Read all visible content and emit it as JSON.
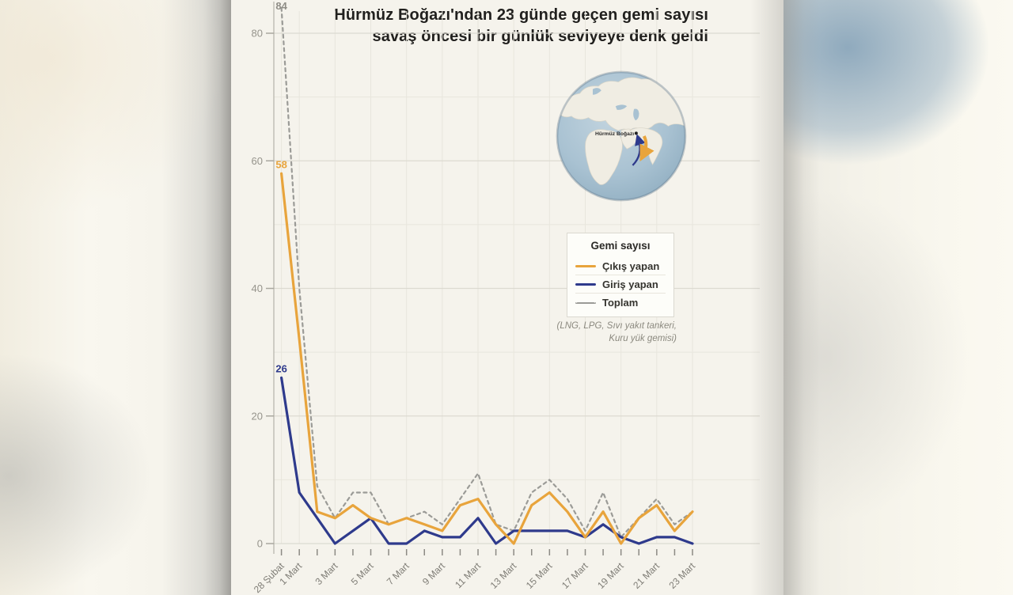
{
  "title": {
    "line1": "Hürmüz Boğazı'ndan 23 günde geçen gemi sayısı",
    "line2": "savaş öncesi bir günlük seviyeye denk geldi"
  },
  "chart_data": {
    "type": "line",
    "categories": [
      "28 Şubat",
      "1 Mart",
      "2 Mart",
      "3 Mart",
      "4 Mart",
      "5 Mart",
      "6 Mart",
      "7 Mart",
      "8 Mart",
      "9 Mart",
      "10 Mart",
      "11 Mart",
      "12 Mart",
      "13 Mart",
      "14 Mart",
      "15 Mart",
      "16 Mart",
      "17 Mart",
      "18 Mart",
      "19 Mart",
      "20 Mart",
      "21 Mart",
      "22 Mart",
      "23 Mart"
    ],
    "label_indices": [
      0,
      1,
      3,
      5,
      7,
      9,
      11,
      13,
      15,
      17,
      19,
      21,
      23
    ],
    "series": [
      {
        "name": "Toplam",
        "color": "#9B9B97",
        "style": "dashed",
        "values": [
          84,
          40,
          9,
          4,
          8,
          8,
          3,
          4,
          5,
          3,
          7,
          11,
          3,
          2,
          8,
          10,
          7,
          2,
          8,
          1,
          4,
          7,
          3,
          5
        ]
      },
      {
        "name": "Giriş yapan",
        "color": "#2E3A8C",
        "style": "solid",
        "values": [
          26,
          8,
          4,
          0,
          2,
          4,
          0,
          0,
          2,
          1,
          1,
          4,
          0,
          2,
          2,
          2,
          2,
          1,
          3,
          1,
          0,
          1,
          1,
          0
        ]
      },
      {
        "name": "Çıkış yapan",
        "color": "#E8A43C",
        "style": "solid",
        "values": [
          58,
          32,
          5,
          4,
          6,
          4,
          3,
          4,
          3,
          2,
          6,
          7,
          3,
          0,
          6,
          8,
          5,
          1,
          5,
          0,
          4,
          6,
          2,
          5
        ]
      }
    ],
    "title": "Hürmüz Boğazı'ndan 23 günde geçen gemi sayısı savaş öncesi bir günlük seviyeye denk geldi",
    "xlabel": "",
    "ylabel": "",
    "ylim": [
      0,
      84
    ],
    "yticks": [
      0,
      20,
      40,
      60,
      80
    ],
    "yticks_minor": [
      10,
      30,
      50,
      70
    ],
    "grid": true,
    "legend_position": "middle-right",
    "annotations": [
      {
        "series": "Toplam",
        "index": 0,
        "text": "84",
        "color": "#8F8D86"
      },
      {
        "series": "Çıkış yapan",
        "index": 0,
        "text": "58",
        "color": "#E8A43C"
      },
      {
        "series": "Giriş yapan",
        "index": 0,
        "text": "26",
        "color": "#2E3A8C"
      }
    ]
  },
  "legend": {
    "title": "Gemi sayısı",
    "items": [
      {
        "label": "Çıkış yapan",
        "swatch": "orange-solid-line"
      },
      {
        "label": "Giriş yapan",
        "swatch": "navy-solid-line"
      },
      {
        "label": "Toplam",
        "swatch": "gray-dashed-line"
      }
    ]
  },
  "footnote": {
    "line1": "(LNG, LPG, Sıvı yakıt tankeri,",
    "line2": "Kuru yük gemisi)"
  },
  "globe": {
    "label": "Hürmüz Boğazı"
  },
  "colors": {
    "outgoing": "#E8A43C",
    "incoming": "#2E3A8C",
    "total": "#9B9B97",
    "paper": "#F5F3EC",
    "grid_major": "#DCDAD1",
    "grid_minor": "#E8E6DD",
    "axis_text": "#96948C",
    "title_text": "#21201E"
  }
}
